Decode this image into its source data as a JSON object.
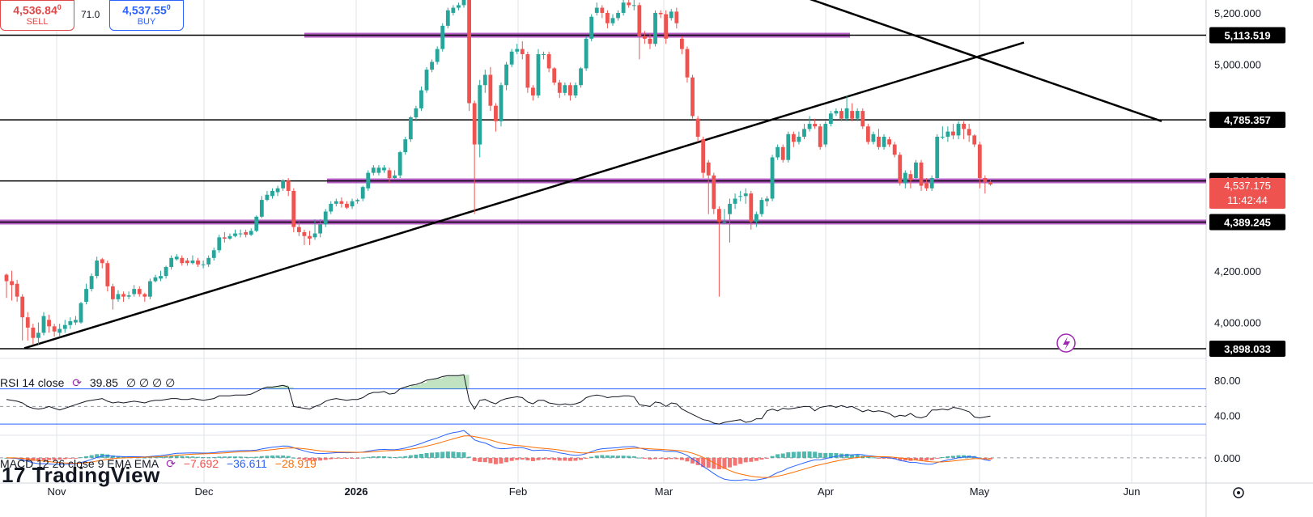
{
  "trade_panel": {
    "sell_price": "4,536.84",
    "sell_price_sup": "0",
    "sell_label": "SELL",
    "spread": "71.0",
    "buy_price": "4,537.55",
    "buy_price_sup": "0",
    "buy_label": "BUY"
  },
  "watermark": "TradingView",
  "rsi_legend": {
    "name": "RSI 14 close",
    "value": "39.85",
    "extra": "∅ ∅ ∅ ∅"
  },
  "macd_legend": {
    "name": "MACD 12 26 close 9 EMA EMA",
    "v1": "−7.692",
    "v2": "−36.611",
    "v3": "−28.919"
  },
  "colors": {
    "up": "#26a69a",
    "down": "#ef5350",
    "support": "#9c27b0",
    "line": "#000000",
    "rsi": "#131722",
    "macd": "#2962ff",
    "signal": "#ff6d00"
  },
  "current_price_label": {
    "price": "4,537.175",
    "timer": "11:42:44"
  },
  "chart_data": {
    "type": "candlestick",
    "x_labels": [
      "Nov",
      "Dec",
      "2026",
      "Feb",
      "Mar",
      "Apr",
      "May",
      "Jun"
    ],
    "y_ticks": [
      "5,200.000",
      "5,000.000",
      "4,200.000",
      "4,000.000"
    ],
    "ylim": [
      3870,
      5250
    ],
    "horizontal_levels": [
      {
        "price": 5113.519,
        "label": "5,113.519",
        "zone": true
      },
      {
        "price": 4785.357,
        "label": "4,785.357",
        "zone": false
      },
      {
        "price": 4548.822,
        "label": "4,548.822",
        "zone": true
      },
      {
        "price": 4389.245,
        "label": "4,389.245",
        "zone": true
      },
      {
        "price": 3898.033,
        "label": "3,898.033",
        "zone": false
      }
    ],
    "trendlines": [
      {
        "from": [
          30,
          3900
        ],
        "to": [
          1265,
          5085
        ]
      },
      {
        "from": [
          990,
          5265
        ],
        "to": [
          1435,
          4780
        ]
      }
    ],
    "candles": [
      [
        4160,
        4185,
        4095,
        4190
      ],
      [
        4145,
        4160,
        4085,
        4200
      ],
      [
        4100,
        4150,
        4080,
        4165
      ],
      [
        4020,
        4100,
        3930,
        4110
      ],
      [
        3980,
        4020,
        3930,
        4040
      ],
      [
        3940,
        3980,
        3915,
        3995
      ],
      [
        3960,
        3940,
        3915,
        4000
      ],
      [
        4025,
        3960,
        3950,
        4040
      ],
      [
        3985,
        4010,
        3960,
        4030
      ],
      [
        3965,
        3985,
        3945,
        3995
      ],
      [
        3975,
        3960,
        3945,
        3995
      ],
      [
        3990,
        3975,
        3960,
        4010
      ],
      [
        4005,
        3990,
        3975,
        4020
      ],
      [
        4010,
        4000,
        3990,
        4025
      ],
      [
        4075,
        4000,
        3995,
        4080
      ],
      [
        4130,
        4080,
        4070,
        4150
      ],
      [
        4180,
        4130,
        4120,
        4190
      ],
      [
        4240,
        4180,
        4170,
        4255
      ],
      [
        4230,
        4245,
        4210,
        4250
      ],
      [
        4140,
        4230,
        4120,
        4240
      ],
      [
        4090,
        4140,
        4050,
        4150
      ],
      [
        4110,
        4090,
        4080,
        4125
      ],
      [
        4100,
        4110,
        4080,
        4120
      ],
      [
        4105,
        4100,
        4090,
        4120
      ],
      [
        4130,
        4110,
        4100,
        4145
      ],
      [
        4110,
        4130,
        4100,
        4140
      ],
      [
        4100,
        4110,
        4080,
        4115
      ],
      [
        4160,
        4100,
        4090,
        4170
      ],
      [
        4175,
        4160,
        4155,
        4185
      ],
      [
        4180,
        4170,
        4160,
        4200
      ],
      [
        4215,
        4180,
        4170,
        4220
      ],
      [
        4250,
        4215,
        4205,
        4260
      ],
      [
        4255,
        4245,
        4240,
        4265
      ],
      [
        4230,
        4250,
        4220,
        4260
      ],
      [
        4230,
        4240,
        4220,
        4250
      ],
      [
        4240,
        4230,
        4225,
        4260
      ],
      [
        4225,
        4240,
        4215,
        4250
      ],
      [
        4225,
        4225,
        4210,
        4240
      ],
      [
        4250,
        4225,
        4215,
        4260
      ],
      [
        4280,
        4250,
        4240,
        4290
      ],
      [
        4330,
        4280,
        4270,
        4340
      ],
      [
        4325,
        4330,
        4310,
        4350
      ],
      [
        4335,
        4325,
        4320,
        4345
      ],
      [
        4345,
        4335,
        4330,
        4360
      ],
      [
        4345,
        4345,
        4330,
        4360
      ],
      [
        4340,
        4350,
        4330,
        4360
      ],
      [
        4355,
        4340,
        4335,
        4365
      ],
      [
        4410,
        4355,
        4350,
        4415
      ],
      [
        4475,
        4410,
        4405,
        4490
      ],
      [
        4495,
        4475,
        4470,
        4510
      ],
      [
        4510,
        4490,
        4480,
        4520
      ],
      [
        4520,
        4505,
        4490,
        4530
      ],
      [
        4550,
        4520,
        4510,
        4555
      ],
      [
        4510,
        4550,
        4490,
        4560
      ],
      [
        4370,
        4510,
        4350,
        4520
      ],
      [
        4350,
        4370,
        4335,
        4390
      ],
      [
        4335,
        4350,
        4300,
        4360
      ],
      [
        4325,
        4335,
        4300,
        4355
      ],
      [
        4345,
        4330,
        4320,
        4400
      ],
      [
        4380,
        4345,
        4330,
        4400
      ],
      [
        4430,
        4380,
        4370,
        4440
      ],
      [
        4460,
        4430,
        4420,
        4470
      ],
      [
        4470,
        4460,
        4450,
        4480
      ],
      [
        4460,
        4470,
        4445,
        4485
      ],
      [
        4445,
        4460,
        4440,
        4470
      ],
      [
        4470,
        4450,
        4440,
        4480
      ],
      [
        4475,
        4470,
        4460,
        4480
      ],
      [
        4525,
        4480,
        4470,
        4530
      ],
      [
        4580,
        4520,
        4510,
        4590
      ],
      [
        4600,
        4580,
        4570,
        4610
      ],
      [
        4600,
        4580,
        4570,
        4610
      ],
      [
        4600,
        4590,
        4580,
        4610
      ],
      [
        4560,
        4590,
        4540,
        4600
      ],
      [
        4570,
        4560,
        4555,
        4590
      ],
      [
        4660,
        4570,
        4560,
        4665
      ],
      [
        4710,
        4660,
        4650,
        4720
      ],
      [
        4795,
        4710,
        4700,
        4800
      ],
      [
        4830,
        4795,
        4780,
        4840
      ],
      [
        4900,
        4830,
        4820,
        4915
      ],
      [
        4980,
        4900,
        4890,
        4990
      ],
      [
        5010,
        4980,
        4970,
        5020
      ],
      [
        5060,
        5010,
        5000,
        5070
      ],
      [
        5150,
        5060,
        5050,
        5160
      ],
      [
        5210,
        5150,
        5140,
        5220
      ],
      [
        5220,
        5200,
        5190,
        5230
      ],
      [
        5230,
        5220,
        5210,
        5240
      ],
      [
        5310,
        5230,
        5220,
        5320
      ],
      [
        4850,
        5280,
        4820,
        5320
      ],
      [
        4690,
        4850,
        4420,
        4860
      ],
      [
        4920,
        4690,
        4640,
        4940
      ],
      [
        4960,
        4920,
        4890,
        4980
      ],
      [
        4840,
        4960,
        4820,
        4990
      ],
      [
        4780,
        4840,
        4740,
        4850
      ],
      [
        4920,
        4780,
        4760,
        4930
      ],
      [
        5000,
        4920,
        4900,
        5010
      ],
      [
        5050,
        5000,
        4990,
        5060
      ],
      [
        5060,
        5050,
        5040,
        5080
      ],
      [
        5040,
        5060,
        5020,
        5090
      ],
      [
        4910,
        5040,
        4890,
        5050
      ],
      [
        4880,
        4910,
        4860,
        4920
      ],
      [
        5040,
        4880,
        4870,
        5060
      ],
      [
        5040,
        5040,
        5020,
        5050
      ],
      [
        4985,
        5040,
        4970,
        5050
      ],
      [
        4930,
        4985,
        4920,
        4990
      ],
      [
        4890,
        4930,
        4870,
        4940
      ],
      [
        4920,
        4890,
        4880,
        4930
      ],
      [
        4880,
        4920,
        4860,
        4930
      ],
      [
        4920,
        4880,
        4870,
        4930
      ],
      [
        4985,
        4920,
        4910,
        4990
      ],
      [
        5100,
        4985,
        4975,
        5110
      ],
      [
        5185,
        5100,
        5090,
        5195
      ],
      [
        5220,
        5200,
        5190,
        5240
      ],
      [
        5200,
        5220,
        5180,
        5230
      ],
      [
        5160,
        5200,
        5140,
        5210
      ],
      [
        5180,
        5160,
        5150,
        5195
      ],
      [
        5200,
        5180,
        5170,
        5210
      ],
      [
        5240,
        5200,
        5190,
        5250
      ],
      [
        5230,
        5240,
        5220,
        5260
      ],
      [
        5230,
        5230,
        5210,
        5250
      ],
      [
        5110,
        5230,
        5020,
        5240
      ],
      [
        5100,
        5110,
        5080,
        5130
      ],
      [
        5080,
        5100,
        5060,
        5120
      ],
      [
        5200,
        5080,
        5070,
        5210
      ],
      [
        5195,
        5200,
        5180,
        5210
      ],
      [
        5100,
        5195,
        5080,
        5210
      ],
      [
        5205,
        5180,
        5170,
        5215
      ],
      [
        5160,
        5205,
        5140,
        5220
      ],
      [
        5060,
        5100,
        5040,
        5110
      ],
      [
        4950,
        5060,
        4930,
        5070
      ],
      [
        4800,
        4950,
        4790,
        4960
      ],
      [
        4720,
        4790,
        4700,
        4800
      ],
      [
        4580,
        4710,
        4560,
        4720
      ],
      [
        4570,
        4620,
        4420,
        4630
      ],
      [
        4440,
        4570,
        4420,
        4580
      ],
      [
        4390,
        4440,
        4100,
        4450
      ],
      [
        4390,
        4390,
        4380,
        4440
      ],
      [
        4460,
        4420,
        4310,
        4480
      ],
      [
        4480,
        4460,
        4440,
        4500
      ],
      [
        4490,
        4490,
        4470,
        4510
      ],
      [
        4500,
        4490,
        4460,
        4520
      ],
      [
        4390,
        4500,
        4360,
        4510
      ],
      [
        4420,
        4390,
        4370,
        4430
      ],
      [
        4475,
        4420,
        4410,
        4485
      ],
      [
        4480,
        4470,
        4450,
        4490
      ],
      [
        4640,
        4480,
        4470,
        4650
      ],
      [
        4680,
        4640,
        4630,
        4690
      ],
      [
        4630,
        4680,
        4620,
        4690
      ],
      [
        4730,
        4630,
        4620,
        4740
      ],
      [
        4700,
        4730,
        4680,
        4740
      ],
      [
        4720,
        4700,
        4690,
        4740
      ],
      [
        4750,
        4720,
        4710,
        4770
      ],
      [
        4770,
        4750,
        4740,
        4800
      ],
      [
        4760,
        4770,
        4750,
        4790
      ],
      [
        4680,
        4760,
        4670,
        4770
      ],
      [
        4770,
        4690,
        4680,
        4780
      ],
      [
        4810,
        4770,
        4760,
        4820
      ],
      [
        4820,
        4810,
        4800,
        4830
      ],
      [
        4790,
        4820,
        4780,
        4830
      ],
      [
        4830,
        4790,
        4780,
        4880
      ],
      [
        4790,
        4820,
        4780,
        4850
      ],
      [
        4820,
        4790,
        4780,
        4830
      ],
      [
        4760,
        4820,
        4750,
        4830
      ],
      [
        4700,
        4760,
        4690,
        4770
      ],
      [
        4730,
        4700,
        4690,
        4740
      ],
      [
        4680,
        4720,
        4670,
        4750
      ],
      [
        4720,
        4680,
        4670,
        4730
      ],
      [
        4690,
        4710,
        4680,
        4720
      ],
      [
        4650,
        4690,
        4640,
        4700
      ],
      [
        4540,
        4650,
        4530,
        4660
      ],
      [
        4580,
        4540,
        4520,
        4590
      ],
      [
        4550,
        4575,
        4520,
        4590
      ],
      [
        4620,
        4560,
        4550,
        4630
      ],
      [
        4530,
        4620,
        4510,
        4630
      ],
      [
        4520,
        4540,
        4510,
        4560
      ],
      [
        4560,
        4520,
        4510,
        4570
      ],
      [
        4720,
        4560,
        4550,
        4730
      ],
      [
        4720,
        4720,
        4710,
        4760
      ],
      [
        4740,
        4720,
        4700,
        4760
      ],
      [
        4725,
        4740,
        4710,
        4770
      ],
      [
        4770,
        4725,
        4710,
        4780
      ],
      [
        4750,
        4770,
        4710,
        4780
      ],
      [
        4725,
        4750,
        4700,
        4770
      ],
      [
        4690,
        4725,
        4680,
        4730
      ],
      [
        4560,
        4690,
        4520,
        4700
      ],
      [
        4545,
        4560,
        4500,
        4570
      ],
      [
        4535,
        4545,
        4530,
        4555
      ]
    ],
    "rsi": {
      "ylim": [
        20,
        100
      ],
      "upper": 70,
      "lower": 30,
      "mid": 50,
      "ticks": [
        "80.00",
        "40.00"
      ],
      "values": [
        58,
        57,
        56,
        54,
        50,
        48,
        47,
        48,
        50,
        48,
        46,
        48,
        50,
        52,
        54,
        56,
        57,
        58,
        59,
        56,
        54,
        55,
        54,
        55,
        56,
        55,
        54,
        56,
        57,
        57,
        58,
        59,
        59,
        58,
        58,
        59,
        58,
        57,
        58,
        59,
        62,
        62,
        62,
        63,
        63,
        63,
        64,
        67,
        70,
        72,
        72,
        73,
        74,
        72,
        50,
        49,
        48,
        47,
        50,
        52,
        56,
        58,
        59,
        58,
        57,
        58,
        58,
        60,
        64,
        66,
        66,
        67,
        64,
        65,
        70,
        72,
        74,
        75,
        77,
        80,
        81,
        82,
        84,
        85,
        85,
        85,
        86,
        57,
        47,
        57,
        58,
        55,
        53,
        57,
        59,
        60,
        61,
        60,
        55,
        53,
        57,
        57,
        54,
        53,
        52,
        53,
        52,
        53,
        55,
        60,
        62,
        63,
        62,
        60,
        61,
        61,
        62,
        62,
        61,
        52,
        51,
        50,
        55,
        54,
        50,
        54,
        53,
        47,
        44,
        41,
        38,
        35,
        34,
        31,
        30,
        32,
        33,
        34,
        35,
        32,
        33,
        36,
        36,
        45,
        47,
        45,
        48,
        47,
        48,
        49,
        50,
        50,
        45,
        49,
        50,
        51,
        49,
        51,
        49,
        50,
        47,
        44,
        46,
        44,
        45,
        44,
        42,
        38,
        40,
        39,
        42,
        38,
        37,
        39,
        46,
        46,
        47,
        46,
        49,
        48,
        46,
        44,
        38,
        37,
        38,
        39
      ]
    },
    "macd": {
      "ylim": [
        -180,
        160
      ],
      "ticks": [
        "0.000"
      ],
      "macd": [],
      "signal": [],
      "hist": []
    }
  }
}
